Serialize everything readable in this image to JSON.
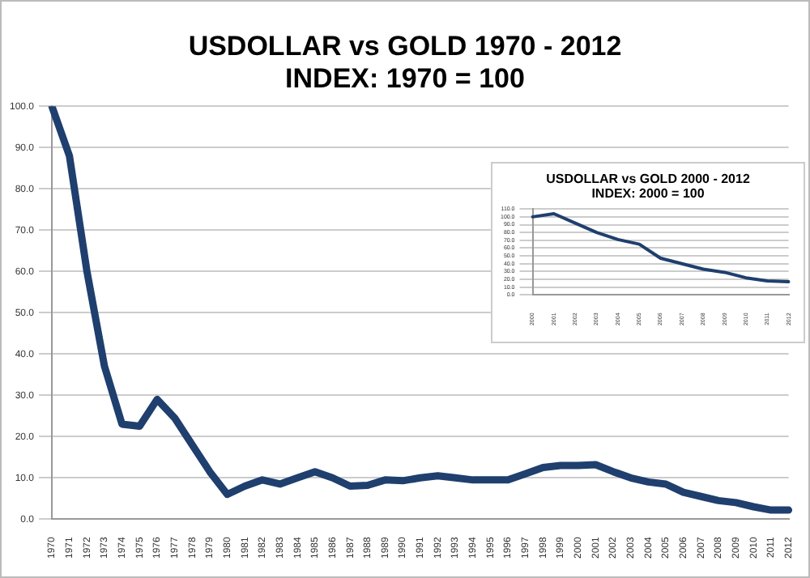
{
  "chart_data": [
    {
      "type": "line",
      "title": "USDOLLAR vs GOLD 1970 - 2012",
      "subtitle": "INDEX: 1970 = 100",
      "categories": [
        "1970",
        "1971",
        "1972",
        "1973",
        "1974",
        "1975",
        "1976",
        "1977",
        "1978",
        "1979",
        "1980",
        "1981",
        "1982",
        "1983",
        "1984",
        "1985",
        "1986",
        "1987",
        "1988",
        "1989",
        "1990",
        "1991",
        "1992",
        "1993",
        "1994",
        "1995",
        "1996",
        "1997",
        "1998",
        "1999",
        "2000",
        "2001",
        "2002",
        "2003",
        "2004",
        "2005",
        "2006",
        "2007",
        "2008",
        "2009",
        "2010",
        "2011",
        "2012"
      ],
      "series": [
        {
          "color": "#1f3f6e",
          "values": [
            100,
            88,
            60,
            37,
            23,
            22.5,
            29,
            24.5,
            18,
            11.5,
            6,
            8,
            9.5,
            8.5,
            10,
            11.5,
            10,
            8,
            8.2,
            9.5,
            9.3,
            10,
            10.5,
            10,
            9.5,
            9.5,
            9.5,
            11,
            12.5,
            13,
            13,
            13.2,
            11.5,
            10,
            9,
            8.5,
            6.5,
            5.5,
            4.5,
            4,
            3,
            2.2,
            2.2
          ]
        }
      ],
      "ylim": [
        0,
        100
      ],
      "yticks": [
        {
          "value": 0,
          "label": "0.0"
        },
        {
          "value": 10,
          "label": "10.0"
        },
        {
          "value": 20,
          "label": "20.0"
        },
        {
          "value": 30,
          "label": "30.0"
        },
        {
          "value": 40,
          "label": "40.0"
        },
        {
          "value": 50,
          "label": "50.0"
        },
        {
          "value": 60,
          "label": "60.0"
        },
        {
          "value": 70,
          "label": "70.0"
        },
        {
          "value": 80,
          "label": "80.0"
        },
        {
          "value": 90,
          "label": "90.0"
        },
        {
          "value": 100,
          "label": "100.0"
        }
      ],
      "grid": "y",
      "legend": false,
      "marker": "none",
      "line_style": "solid"
    },
    {
      "type": "line",
      "title": "USDOLLAR vs GOLD 2000 - 2012",
      "subtitle": "INDEX: 2000 = 100",
      "categories": [
        "2000",
        "2001",
        "2002",
        "2003",
        "2004",
        "2005",
        "2006",
        "2007",
        "2008",
        "2009",
        "2010",
        "2011",
        "2012"
      ],
      "series": [
        {
          "color": "#1f3f6e",
          "values": [
            100,
            104,
            92,
            80,
            71,
            65,
            47,
            40,
            33,
            29,
            22,
            18,
            17
          ]
        }
      ],
      "ylim": [
        0,
        110
      ],
      "yticks": [
        {
          "value": 0,
          "label": "0.0"
        },
        {
          "value": 10,
          "label": "10.0"
        },
        {
          "value": 20,
          "label": "20.0"
        },
        {
          "value": 30,
          "label": "30.0"
        },
        {
          "value": 40,
          "label": "40.0"
        },
        {
          "value": 50,
          "label": "50.0"
        },
        {
          "value": 60,
          "label": "60.0"
        },
        {
          "value": 70,
          "label": "70.0"
        },
        {
          "value": 80,
          "label": "80.0"
        },
        {
          "value": 90,
          "label": "90.0"
        },
        {
          "value": 100,
          "label": "100.0"
        },
        {
          "value": 110,
          "label": "110.0"
        }
      ],
      "grid": "y",
      "legend": false,
      "marker": "none",
      "line_style": "solid"
    }
  ]
}
